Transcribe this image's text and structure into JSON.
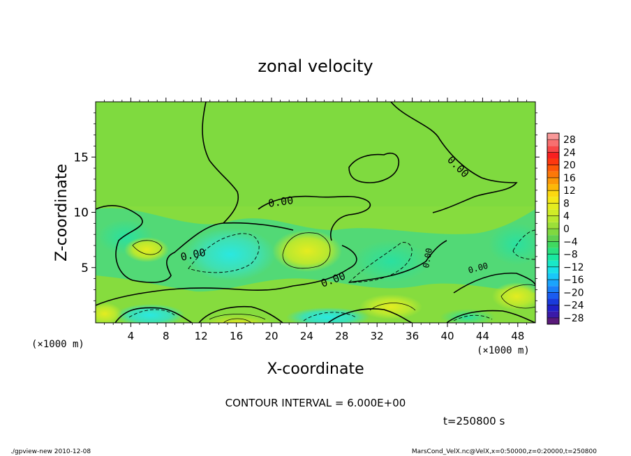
{
  "chart_data": {
    "type": "heatmap",
    "title": "zonal velocity",
    "xlabel": "X-coordinate",
    "ylabel": "Z-coordinate",
    "x_unit_label": "(×1000 m)",
    "y_unit_label": "(×1000 m)",
    "xlim": [
      0,
      50
    ],
    "ylim": [
      0,
      20
    ],
    "x_ticks": [
      4,
      8,
      12,
      16,
      20,
      24,
      28,
      32,
      36,
      40,
      44,
      48
    ],
    "x_tick_labels": [
      "4",
      "8",
      "12",
      "16",
      "20",
      "24",
      "28",
      "32",
      "36",
      "40",
      "44",
      "48"
    ],
    "y_ticks": [
      5,
      10,
      15
    ],
    "y_tick_labels": [
      "5",
      "10",
      "15"
    ],
    "colorbar": {
      "levels": [
        -30,
        -28,
        -26,
        -24,
        -22,
        -20,
        -18,
        -16,
        -14,
        -12,
        -10,
        -8,
        -6,
        -4,
        -2,
        0,
        2,
        4,
        6,
        8,
        10,
        12,
        14,
        16,
        18,
        20,
        22,
        24,
        26,
        28,
        30
      ],
      "tick_values": [
        28,
        24,
        20,
        16,
        12,
        8,
        4,
        0,
        -4,
        -8,
        -12,
        -16,
        -20,
        -24,
        -28
      ],
      "tick_labels": [
        "28",
        "24",
        "20",
        "16",
        "12",
        "8",
        "4",
        "0",
        "−4",
        "−8",
        "−12",
        "−16",
        "−20",
        "−24",
        "−28"
      ],
      "colors": [
        "#5a1a7a",
        "#3a1aa8",
        "#2020c8",
        "#1a3adc",
        "#1a5cf0",
        "#1a80f8",
        "#1aa4fc",
        "#1ac8f8",
        "#1ae0e8",
        "#1ae8c8",
        "#1ae8a0",
        "#2ae080",
        "#40d860",
        "#60d050",
        "#80d840",
        "#9ce038",
        "#b8e830",
        "#d0ec28",
        "#e4ec20",
        "#f4e818",
        "#fcd810",
        "#fcb808",
        "#fc9808",
        "#fc7808",
        "#fc5808",
        "#fc3810",
        "#f82020",
        "#f84848",
        "#f87070",
        "#f89898"
      ]
    },
    "contour_labels": [
      "0.00",
      "0.00",
      "0.00",
      "0.00",
      "0.00",
      "0.00"
    ],
    "contour_interval_text": "CONTOUR INTERVAL = 6.000E+00",
    "time_text": "t=250800 s"
  },
  "footer": {
    "left": "./gpview-new  2010-12-08",
    "right": "MarsCond_VelX.nc@VelX,x=0:50000,z=0:20000,t=250800"
  }
}
